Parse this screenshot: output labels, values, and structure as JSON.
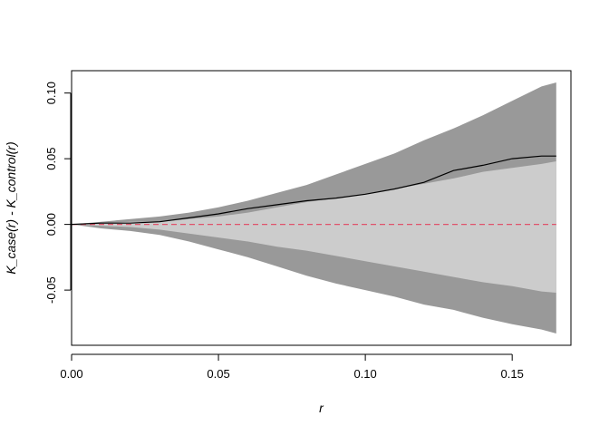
{
  "chart_data": {
    "type": "area",
    "title": "",
    "xlabel": "r",
    "ylabel": "K_case(r) - K_control(r)",
    "xlim": [
      0.0,
      0.17
    ],
    "ylim": [
      -0.092,
      0.117
    ],
    "x_ticks": [
      "0.00",
      "0.05",
      "0.10",
      "0.15"
    ],
    "y_ticks": [
      "-0.05",
      "0.00",
      "0.05",
      "0.10"
    ],
    "grid": false,
    "legend": "none",
    "series": [
      {
        "kind": "outer_envelope",
        "color": "#999999",
        "x": [
          0.0,
          0.01,
          0.02,
          0.03,
          0.04,
          0.05,
          0.06,
          0.07,
          0.08,
          0.09,
          0.1,
          0.11,
          0.12,
          0.13,
          0.14,
          0.15,
          0.16,
          0.165
        ],
        "upper": [
          0.0,
          0.002,
          0.004,
          0.006,
          0.009,
          0.013,
          0.018,
          0.024,
          0.03,
          0.038,
          0.046,
          0.054,
          0.064,
          0.073,
          0.083,
          0.094,
          0.105,
          0.108
        ],
        "lower": [
          0.0,
          -0.003,
          -0.005,
          -0.008,
          -0.013,
          -0.019,
          -0.025,
          -0.032,
          -0.039,
          -0.045,
          -0.05,
          -0.055,
          -0.061,
          -0.065,
          -0.071,
          -0.076,
          -0.08,
          -0.083
        ]
      },
      {
        "kind": "inner_envelope",
        "color": "#cccccc",
        "x": [
          0.0,
          0.01,
          0.02,
          0.03,
          0.04,
          0.05,
          0.06,
          0.07,
          0.08,
          0.09,
          0.1,
          0.11,
          0.12,
          0.13,
          0.14,
          0.15,
          0.16,
          0.165
        ],
        "upper": [
          0.0,
          0.001,
          0.002,
          0.002,
          0.004,
          0.006,
          0.009,
          0.013,
          0.017,
          0.02,
          0.023,
          0.027,
          0.031,
          0.035,
          0.04,
          0.043,
          0.046,
          0.048
        ],
        "lower": [
          0.0,
          -0.001,
          -0.002,
          -0.004,
          -0.007,
          -0.01,
          -0.013,
          -0.017,
          -0.02,
          -0.024,
          -0.028,
          -0.032,
          -0.036,
          -0.04,
          -0.044,
          -0.047,
          -0.051,
          -0.052
        ]
      },
      {
        "kind": "observed",
        "color": "#000000",
        "x": [
          0.0,
          0.01,
          0.02,
          0.03,
          0.04,
          0.05,
          0.06,
          0.07,
          0.08,
          0.09,
          0.1,
          0.11,
          0.12,
          0.13,
          0.14,
          0.15,
          0.16,
          0.165
        ],
        "y": [
          0.0,
          0.001,
          0.001,
          0.002,
          0.005,
          0.008,
          0.012,
          0.015,
          0.018,
          0.02,
          0.023,
          0.027,
          0.032,
          0.041,
          0.045,
          0.05,
          0.052,
          0.052
        ]
      },
      {
        "kind": "reference",
        "color": "#df536b",
        "dash": true,
        "x": [
          0.0,
          0.165
        ],
        "y": [
          0.0,
          0.0
        ]
      }
    ]
  }
}
